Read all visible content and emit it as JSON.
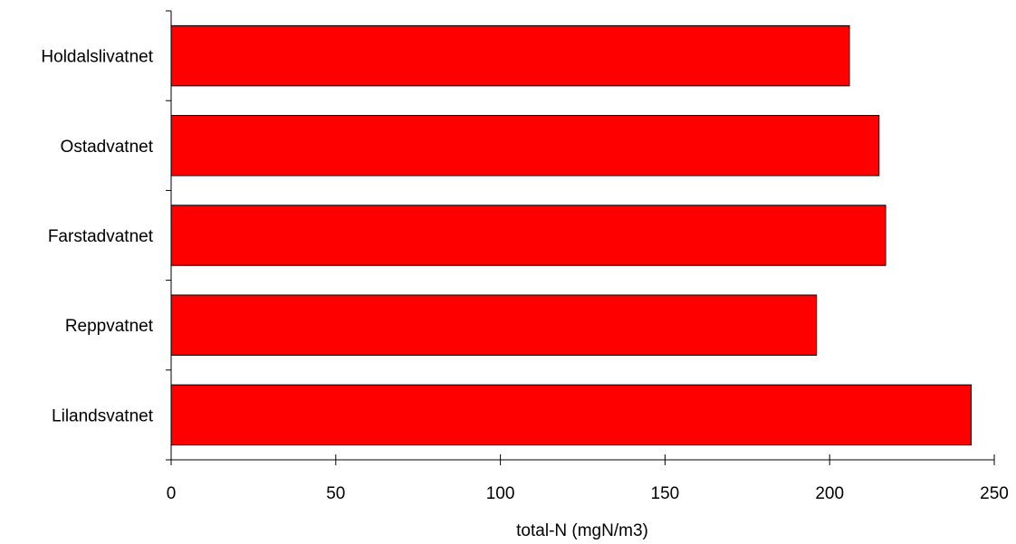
{
  "chart_data": {
    "type": "bar",
    "orientation": "horizontal",
    "categories": [
      "Holdalslivatnet",
      "Ostadvatnet",
      "Farstadvatnet",
      "Reppvatnet",
      "Lilandsvatnet"
    ],
    "values": [
      206,
      215,
      217,
      196,
      243
    ],
    "xlabel": "total-N (mgN/m3)",
    "xlim": [
      0,
      250
    ],
    "xticks": [
      "0",
      "50",
      "100",
      "150",
      "200",
      "250"
    ],
    "grid": false,
    "bar_color": "#ff0000"
  }
}
